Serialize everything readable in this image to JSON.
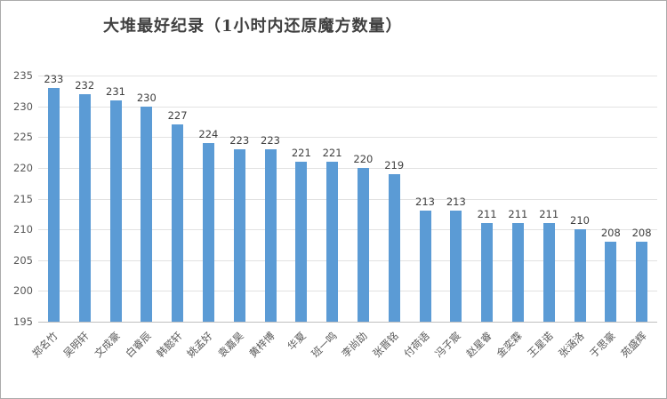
{
  "title": "大堆最好纪录（1小时内还原魔方数量）",
  "chart_data": {
    "type": "bar",
    "title": "大堆最好纪录（1小时内还原魔方数量）",
    "categories": [
      "郑名竹",
      "吴明轩",
      "文成豪",
      "白睿辰",
      "韩懿轩",
      "姚孟好",
      "袁嘉昊",
      "黄梓博",
      "华夏",
      "班一鸣",
      "李尚劼",
      "张晋铭",
      "付荷语",
      "冯子宸",
      "赵星睿",
      "金奕霖",
      "王星诺",
      "张涵洛",
      "于思豪",
      "苑盛辉"
    ],
    "values": [
      233,
      232,
      231,
      230,
      227,
      224,
      223,
      223,
      221,
      221,
      220,
      219,
      213,
      213,
      211,
      211,
      211,
      210,
      208,
      208
    ],
    "yticks": [
      195,
      200,
      205,
      210,
      215,
      220,
      225,
      230,
      235
    ],
    "ylim": [
      195,
      235
    ],
    "ytick_step": 5,
    "grid": true,
    "legend": "none",
    "xlabel": "",
    "ylabel": "",
    "colors": {
      "bar": "#5b9bd5",
      "gridline": "#e2e2e2",
      "axis_line": "#bfbfbf",
      "tick_text": "#595959",
      "value_label": "#404040",
      "title_text": "#404040",
      "border": "#ababab",
      "background": "#ffffff"
    }
  }
}
